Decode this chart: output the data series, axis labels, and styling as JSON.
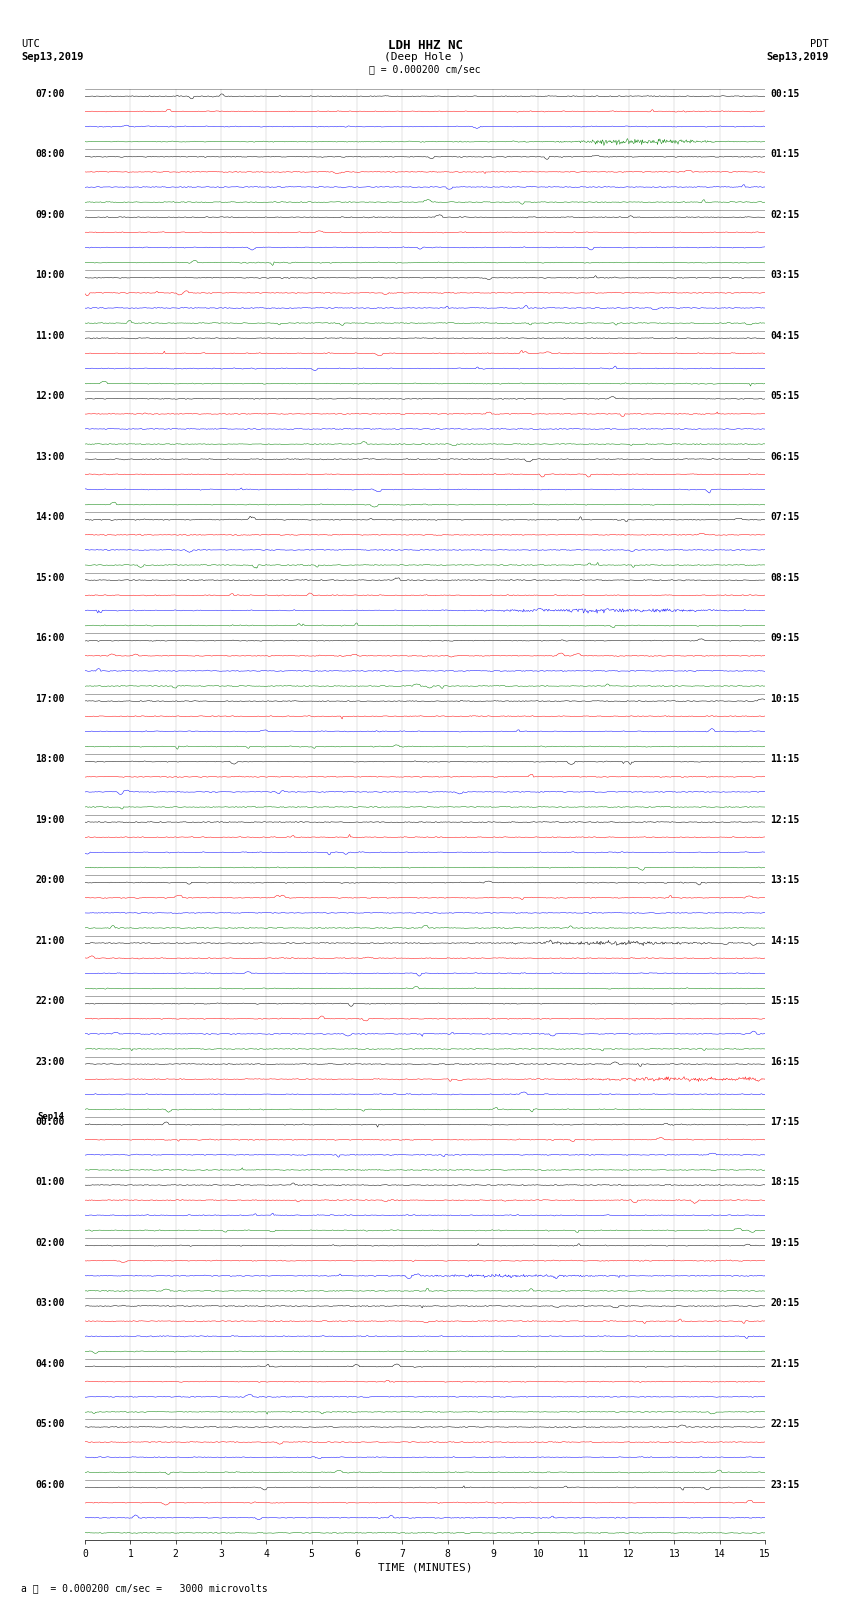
{
  "title": "LDH HHZ NC",
  "subtitle": "(Deep Hole )",
  "scale_label": "= 0.000200 cm/sec",
  "footer_label": "= 0.000200 cm/sec =   3000 microvolts",
  "utc_label": "UTC",
  "utc_date": "Sep13,2019",
  "pdt_label": "PDT",
  "pdt_date": "Sep13,2019",
  "xlabel": "TIME (MINUTES)",
  "bg_color": "#ffffff",
  "trace_colors": [
    "black",
    "red",
    "blue",
    "green"
  ],
  "left_times": [
    "07:00",
    "08:00",
    "09:00",
    "10:00",
    "11:00",
    "12:00",
    "13:00",
    "14:00",
    "15:00",
    "16:00",
    "17:00",
    "18:00",
    "19:00",
    "20:00",
    "21:00",
    "22:00",
    "23:00",
    "00:00",
    "01:00",
    "02:00",
    "03:00",
    "04:00",
    "05:00",
    "06:00"
  ],
  "right_times": [
    "00:15",
    "01:15",
    "02:15",
    "03:15",
    "04:15",
    "05:15",
    "06:15",
    "07:15",
    "08:15",
    "09:15",
    "10:15",
    "11:15",
    "12:15",
    "13:15",
    "14:15",
    "15:15",
    "16:15",
    "17:15",
    "18:15",
    "19:15",
    "20:15",
    "21:15",
    "22:15",
    "23:15"
  ],
  "sep14_idx": 17,
  "n_hours": 24,
  "traces_per_hour": 4,
  "xmin": 0,
  "xmax": 15,
  "figsize": [
    8.5,
    16.13
  ],
  "dpi": 100,
  "noise_scale": 0.03,
  "spike_prob": 0.003,
  "spike_scale": 0.18,
  "seed": 42
}
